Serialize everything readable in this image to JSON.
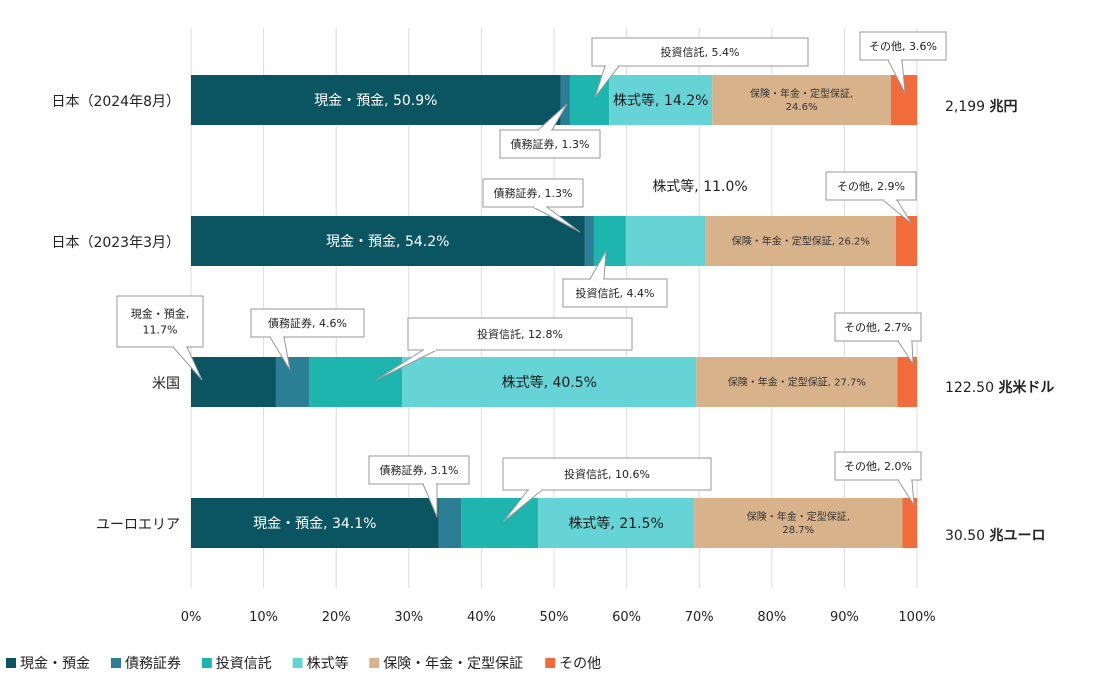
{
  "chart_data": {
    "type": "bar",
    "orientation": "horizontal",
    "stacked": true,
    "xlim": [
      0,
      100
    ],
    "grid": true,
    "legend_position": "bottom",
    "x_ticks": [
      "0%",
      "10%",
      "20%",
      "30%",
      "40%",
      "50%",
      "60%",
      "70%",
      "80%",
      "90%",
      "100%"
    ],
    "categories": [
      "日本（2024年8月）",
      "日本（2023年3月）",
      "米国",
      "ユーロエリア"
    ],
    "totals": [
      {
        "value": "2,199",
        "unit": "兆円"
      },
      {
        "value": "",
        "unit": ""
      },
      {
        "value": "122.50",
        "unit": "兆米ドル"
      },
      {
        "value": "30.50",
        "unit": "兆ユーロ"
      }
    ],
    "series": [
      {
        "name": "現金・預金",
        "color": "#0b5563",
        "values": [
          50.9,
          54.2,
          11.7,
          34.1
        ]
      },
      {
        "name": "債務証券",
        "color": "#2b7e94",
        "values": [
          1.3,
          1.3,
          4.6,
          3.1
        ]
      },
      {
        "name": "投資信託",
        "color": "#1db5ad",
        "values": [
          5.4,
          4.4,
          12.8,
          10.6
        ]
      },
      {
        "name": "株式等",
        "color": "#66d4d6",
        "values": [
          14.2,
          11.0,
          40.5,
          21.5
        ]
      },
      {
        "name": "保険・年金・定型保証",
        "color": "#d8b28a",
        "values": [
          24.6,
          26.2,
          27.7,
          28.7
        ]
      },
      {
        "name": "その他",
        "color": "#f26b3a",
        "values": [
          3.6,
          2.9,
          2.7,
          2.0
        ]
      }
    ],
    "segment_labels": [
      {
        "row": 0,
        "series": 0,
        "lines": [
          "現金・預金, 50.9%"
        ],
        "style": "inside-light"
      },
      {
        "row": 0,
        "series": 3,
        "lines": [
          "株式等, 14.2%"
        ],
        "style": "inside-dark"
      },
      {
        "row": 0,
        "series": 4,
        "lines": [
          "保険・年金・定型保証,",
          "24.6%"
        ],
        "style": "inside-small"
      },
      {
        "row": 1,
        "series": 0,
        "lines": [
          "現金・預金, 54.2%"
        ],
        "style": "inside-light"
      },
      {
        "row": 1,
        "series": 4,
        "lines": [
          "保険・年金・定型保証, 26.2%"
        ],
        "style": "inside-small"
      },
      {
        "row": 2,
        "series": 3,
        "lines": [
          "株式等, 40.5%"
        ],
        "style": "inside-dark"
      },
      {
        "row": 2,
        "series": 4,
        "lines": [
          "保険・年金・定型保証, 27.7%"
        ],
        "style": "inside-small"
      },
      {
        "row": 3,
        "series": 0,
        "lines": [
          "現金・預金, 34.1%"
        ],
        "style": "inside-light"
      },
      {
        "row": 3,
        "series": 3,
        "lines": [
          "株式等, 21.5%"
        ],
        "style": "inside-dark"
      },
      {
        "row": 3,
        "series": 4,
        "lines": [
          "保険・年金・定型保証,",
          "28.7%"
        ],
        "style": "inside-small"
      }
    ],
    "callouts": [
      {
        "row": 0,
        "series": 2,
        "lines": [
          "投資信託, 5.4%"
        ]
      },
      {
        "row": 0,
        "series": 5,
        "lines": [
          "その他, 3.6%"
        ]
      },
      {
        "row": 0,
        "series": 1,
        "lines": [
          "債務証券, 1.3%"
        ]
      },
      {
        "row": 1,
        "series": 1,
        "lines": [
          "債務証券, 1.3%"
        ]
      },
      {
        "row": 1,
        "series": 3,
        "lines": [
          "株式等, 11.0%"
        ]
      },
      {
        "row": 1,
        "series": 5,
        "lines": [
          "その他, 2.9%"
        ]
      },
      {
        "row": 1,
        "series": 2,
        "lines": [
          "投資信託, 4.4%"
        ]
      },
      {
        "row": 2,
        "series": 0,
        "lines": [
          "現金・預金,",
          "11.7%"
        ]
      },
      {
        "row": 2,
        "series": 1,
        "lines": [
          "債務証券, 4.6%"
        ]
      },
      {
        "row": 2,
        "series": 2,
        "lines": [
          "投資信託, 12.8%"
        ]
      },
      {
        "row": 2,
        "series": 5,
        "lines": [
          "その他, 2.7%"
        ]
      },
      {
        "row": 3,
        "series": 1,
        "lines": [
          "債務証券, 3.1%"
        ]
      },
      {
        "row": 3,
        "series": 2,
        "lines": [
          "投資信託, 10.6%"
        ]
      },
      {
        "row": 3,
        "series": 5,
        "lines": [
          "その他, 2.0%"
        ]
      }
    ]
  }
}
